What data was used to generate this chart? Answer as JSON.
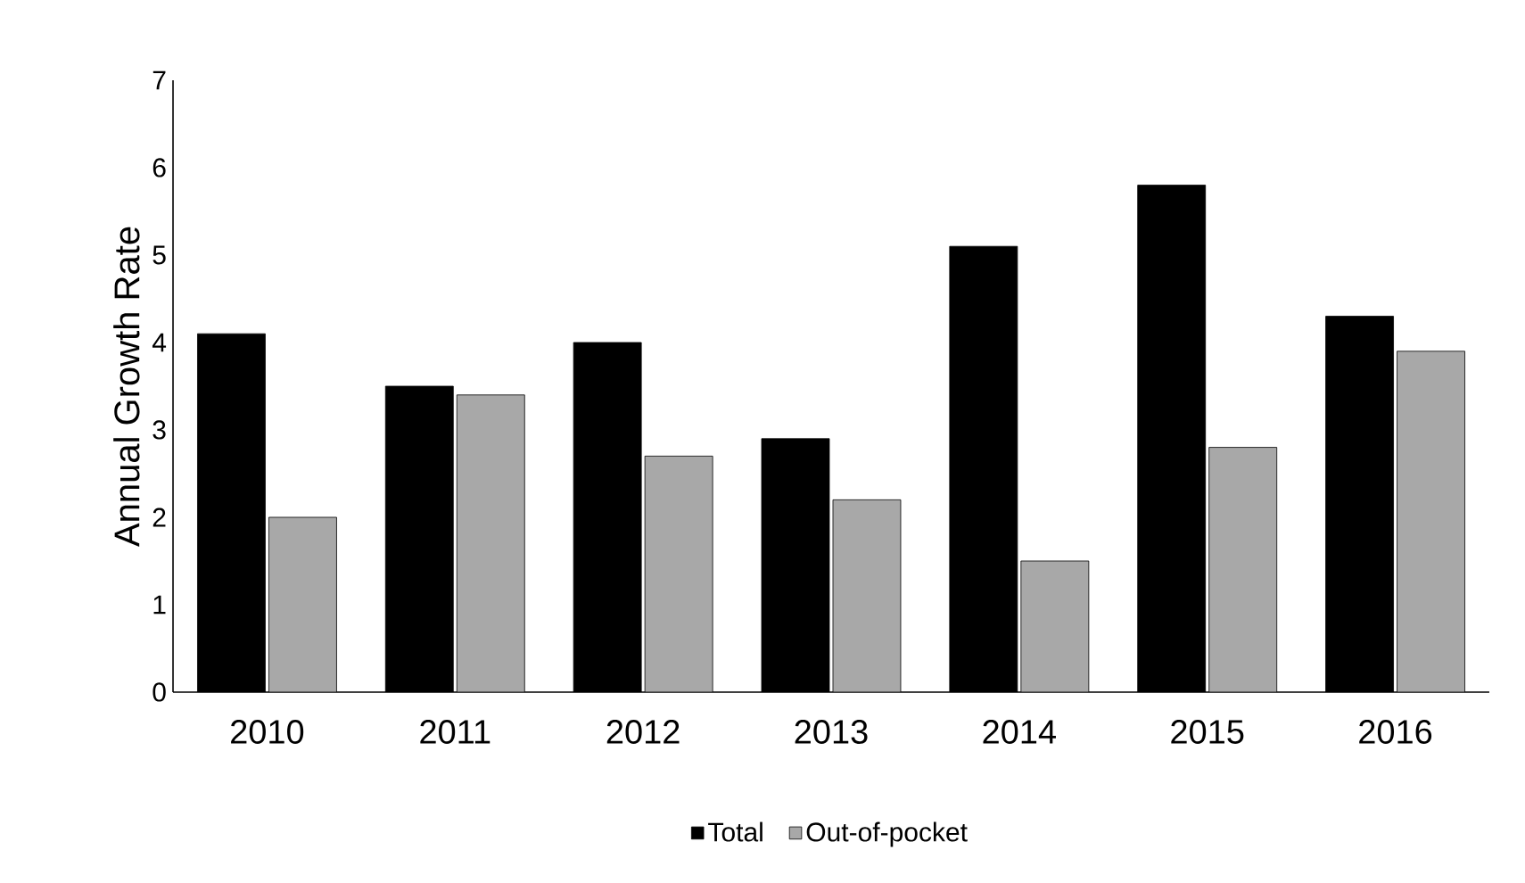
{
  "chart_data": {
    "type": "bar",
    "ylabel": "Annual Growth Rate",
    "categories": [
      "2010",
      "2011",
      "2012",
      "2013",
      "2014",
      "2015",
      "2016"
    ],
    "series": [
      {
        "name": "Total",
        "color": "#000000",
        "values": [
          4.1,
          3.5,
          4.0,
          2.9,
          5.1,
          5.8,
          4.3
        ]
      },
      {
        "name": "Out-of-pocket",
        "color": "#a8a8a8",
        "values": [
          2.0,
          3.4,
          2.7,
          2.2,
          1.5,
          2.8,
          3.9
        ]
      }
    ],
    "ylim": [
      0,
      7
    ],
    "yticks": [
      0,
      1,
      2,
      3,
      4,
      5,
      6,
      7
    ],
    "grid": false,
    "legend": "bottom"
  }
}
